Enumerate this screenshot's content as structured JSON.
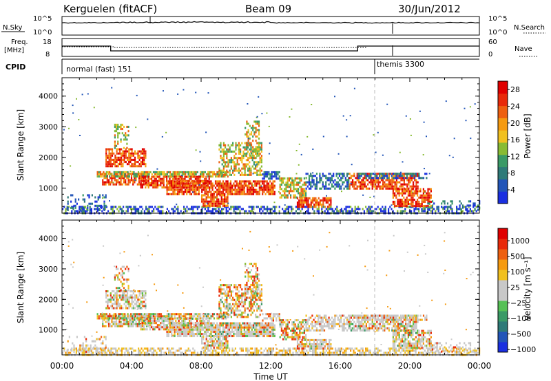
{
  "header": {
    "station": "Kerguelen (fitACF)",
    "beam": "Beam 09",
    "date": "30/Jun/2012"
  },
  "nsky_panel": {
    "left_label": "N.Sky",
    "right_label": "N.Search",
    "left_ticks": [
      "10^5",
      "10^0"
    ],
    "right_ticks": [
      "10^5",
      "10^0"
    ]
  },
  "freq_panel": {
    "left_label_line1": "Freq.",
    "left_label_line2": "[MHz]",
    "right_label": "Nave",
    "left_ticks": [
      "18",
      "8"
    ],
    "right_ticks": [
      "60",
      "0"
    ]
  },
  "cpid_panel": {
    "label": "CPID",
    "modes": [
      {
        "name": "normal (fast) 151",
        "start_hour": 0
      },
      {
        "name": "themis 3300",
        "start_hour": 18
      }
    ]
  },
  "chart_data": [
    {
      "type": "heatmap",
      "quantity": "power",
      "ylabel": "Slant Range [km]",
      "yticks": [
        "1000",
        "2000",
        "3000",
        "4000"
      ],
      "ylim": [
        180,
        4600
      ],
      "xlim": [
        0,
        24
      ],
      "colorbar": {
        "label": "Power [dB]",
        "ticks": [
          "4",
          "8",
          "12",
          "16",
          "20",
          "24",
          "28"
        ],
        "colors": [
          "#1a2fe0",
          "#2255b8",
          "#2e7a78",
          "#3a9a66",
          "#88bb33",
          "#f0c020",
          "#f59a10",
          "#ee6010",
          "#e82a0a",
          "#e00000"
        ]
      }
    },
    {
      "type": "heatmap",
      "quantity": "velocity",
      "ylabel": "Slant Range [km]",
      "yticks": [
        "1000",
        "2000",
        "3000",
        "4000"
      ],
      "ylim": [
        180,
        4600
      ],
      "xlim": [
        0,
        24
      ],
      "xlabel": "Time UT",
      "xticks": [
        "00:00",
        "04:00",
        "08:00",
        "12:00",
        "16:00",
        "20:00",
        "00:00"
      ],
      "colorbar": {
        "label": "Velocity [m s⁻¹]",
        "ticks": [
          "1000",
          "500",
          "100",
          "25",
          "−25",
          "−100",
          "−500",
          "−1000"
        ],
        "colors": [
          "#1a2fe0",
          "#2255b8",
          "#2e7a78",
          "#3a9a66",
          "#55c055",
          "#c8c8c8",
          "#c8c8c8",
          "#f0c020",
          "#f59a10",
          "#ee6010",
          "#e82a0a",
          "#e00000"
        ]
      }
    }
  ]
}
